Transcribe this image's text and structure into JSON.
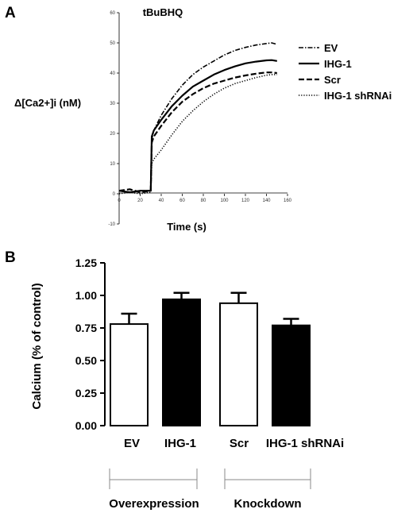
{
  "chart_data": [
    {
      "panel": "A",
      "type": "line",
      "title": "tBuBHQ",
      "xlabel": "Time (s)",
      "ylabel": "Δ[Ca2+]i (nM)",
      "xlim": [
        0,
        160
      ],
      "ylim": [
        -10,
        60
      ],
      "xticks": [
        0,
        20,
        40,
        60,
        80,
        100,
        120,
        140,
        160
      ],
      "yticks": [
        -10,
        0,
        10,
        20,
        30,
        40,
        50,
        60
      ],
      "legend_position": "right",
      "series": [
        {
          "name": "EV",
          "style": "dashdot",
          "x": [
            0,
            10,
            20,
            30,
            31,
            33,
            40,
            50,
            60,
            70,
            80,
            90,
            100,
            110,
            120,
            130,
            140,
            145,
            150
          ],
          "y": [
            1,
            0.5,
            1,
            1,
            18,
            21,
            26,
            31.5,
            36,
            39.5,
            42,
            44,
            46,
            47.5,
            48.5,
            49.3,
            49.8,
            50,
            49.5
          ]
        },
        {
          "name": "IHG-1",
          "style": "solid",
          "x": [
            0,
            10,
            20,
            30,
            31,
            33,
            40,
            50,
            60,
            70,
            80,
            90,
            100,
            110,
            120,
            130,
            140,
            145,
            150
          ],
          "y": [
            1,
            0.5,
            1,
            1,
            19,
            21,
            24.5,
            29,
            32.5,
            35.5,
            37.5,
            39.5,
            41,
            42.2,
            43.2,
            43.8,
            44.2,
            44.3,
            44
          ]
        },
        {
          "name": "Scr",
          "style": "dashed",
          "x": [
            0,
            10,
            20,
            30,
            31,
            33,
            40,
            50,
            60,
            70,
            80,
            90,
            100,
            110,
            120,
            130,
            140,
            145,
            150
          ],
          "y": [
            1,
            1.5,
            0.5,
            1,
            17,
            19,
            22.5,
            27,
            30.5,
            33,
            35,
            36.5,
            37.5,
            38.5,
            39.2,
            39.8,
            40.2,
            40.2,
            40
          ]
        },
        {
          "name": "IHG-1 shRNAi",
          "style": "dotted",
          "x": [
            0,
            10,
            20,
            30,
            31,
            33,
            40,
            50,
            60,
            70,
            80,
            90,
            100,
            110,
            120,
            130,
            140,
            145,
            150
          ],
          "y": [
            0,
            0.5,
            0,
            0.5,
            10,
            11.5,
            14.5,
            19.5,
            24,
            27.5,
            30.5,
            33,
            35,
            36.5,
            37.5,
            38.5,
            39.3,
            39.5,
            39.5
          ]
        }
      ]
    },
    {
      "panel": "B",
      "type": "bar",
      "categories": [
        "EV",
        "IHG-1",
        "Scr",
        "IHG-1 shRNAi"
      ],
      "values": [
        0.78,
        0.97,
        0.94,
        0.77
      ],
      "errors": [
        0.08,
        0.05,
        0.08,
        0.05
      ],
      "fills": [
        "#ffffff",
        "#000000",
        "#ffffff",
        "#000000"
      ],
      "ylabel": "Calcium (% of control)",
      "ylim": [
        0,
        1.25
      ],
      "yticks": [
        "0.00",
        "0.25",
        "0.50",
        "0.75",
        "1.00",
        "1.25"
      ],
      "groups": [
        {
          "label": "Overexpression",
          "members": [
            "EV",
            "IHG-1"
          ]
        },
        {
          "label": "Knockdown",
          "members": [
            "Scr",
            "IHG-1 shRNAi"
          ]
        }
      ]
    }
  ]
}
